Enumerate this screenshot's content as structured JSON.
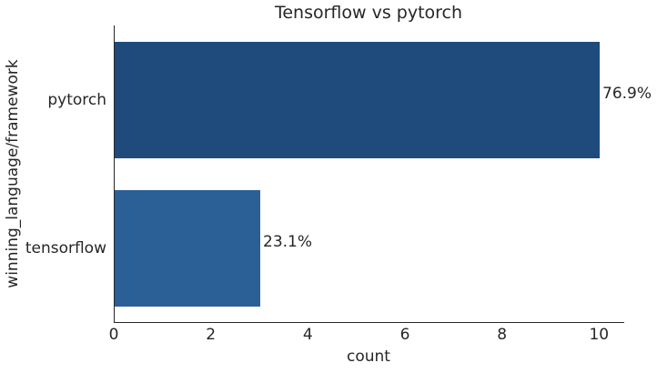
{
  "chart_data": {
    "type": "bar",
    "orientation": "horizontal",
    "title": "Tensorflow vs pytorch",
    "xlabel": "count",
    "ylabel": "winning_language/framework",
    "categories": [
      "pytorch",
      "tensorflow"
    ],
    "values": [
      10,
      3
    ],
    "bar_labels": [
      "76.9%",
      "23.1%"
    ],
    "bar_colors": [
      "#1e4b7c",
      "#2b6096"
    ],
    "xlim": [
      0,
      10.5
    ],
    "xticks": [
      0,
      2,
      4,
      6,
      8,
      10
    ],
    "bar_width_frac": 0.785,
    "grid": false,
    "legend": null,
    "text_color": "#262626",
    "spine_color": "#262626",
    "background_color": "#ffffff"
  }
}
